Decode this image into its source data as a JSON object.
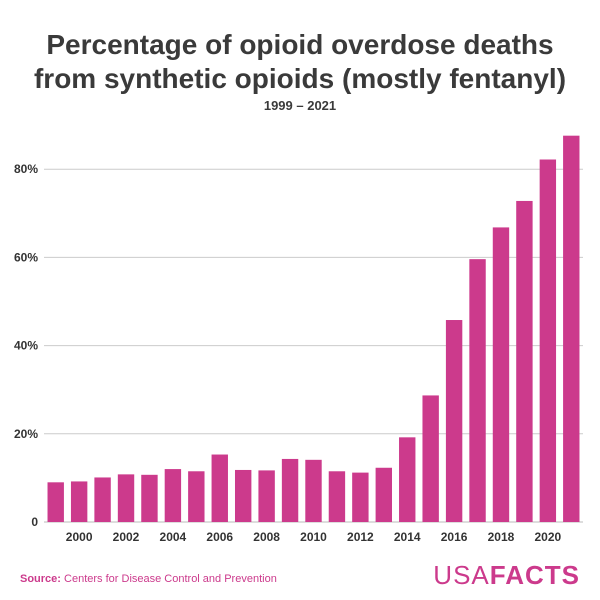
{
  "title_line1": "Percentage of opioid overdose deaths",
  "title_line2": "from synthetic opioids (mostly fentanyl)",
  "subtitle": "1999 – 2021",
  "footer": {
    "source_label": "Source:",
    "source_text": "Centers for Disease Control and Prevention",
    "logo_light": "USA",
    "logo_bold": "FACTS"
  },
  "colors": {
    "bar": "#cc3a8c",
    "accent": "#cc3a8c",
    "text": "#3a3a3a",
    "grid": "#cccccc"
  },
  "chart_data": {
    "type": "bar",
    "title": "Percentage of opioid overdose deaths from synthetic opioids (mostly fentanyl)",
    "subtitle": "1999 – 2021",
    "xlabel": "",
    "ylabel": "",
    "categories": [
      "1999",
      "2000",
      "2001",
      "2002",
      "2003",
      "2004",
      "2005",
      "2006",
      "2007",
      "2008",
      "2009",
      "2010",
      "2011",
      "2012",
      "2013",
      "2014",
      "2015",
      "2016",
      "2017",
      "2018",
      "2019",
      "2020",
      "2021"
    ],
    "values": [
      9.0,
      9.2,
      10.1,
      10.8,
      10.7,
      12.0,
      11.5,
      15.3,
      11.8,
      11.7,
      14.3,
      14.1,
      11.5,
      11.2,
      12.3,
      19.2,
      28.7,
      45.8,
      59.6,
      66.8,
      72.8,
      82.2,
      87.6
    ],
    "x_tick_labels": [
      "2000",
      "2002",
      "2004",
      "2006",
      "2008",
      "2010",
      "2012",
      "2014",
      "2016",
      "2018",
      "2020"
    ],
    "y_ticks": [
      0,
      20,
      40,
      60,
      80
    ],
    "y_tick_labels": [
      "0",
      "20%",
      "40%",
      "60%",
      "80%"
    ],
    "ylim": [
      0,
      90
    ],
    "grid": true
  }
}
